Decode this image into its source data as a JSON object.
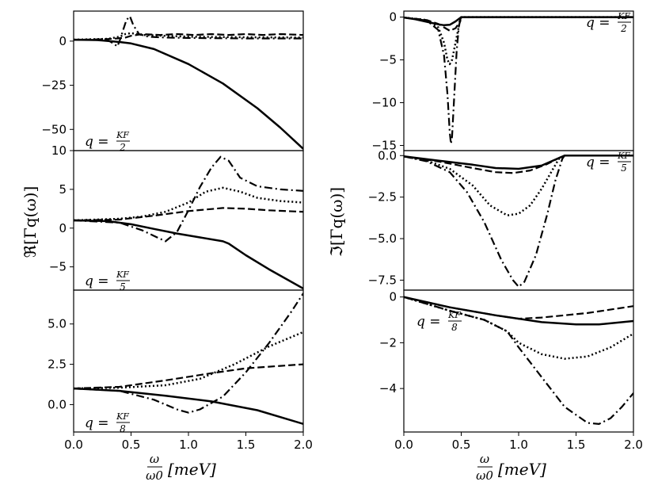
{
  "figure": {
    "x_axis_label": {
      "num": "ω",
      "den": "ω0",
      "unit": "[meV]"
    },
    "left_ylabel": "ℜ[Γq(ω)]",
    "right_ylabel": "ℑ[Γq(ω)]"
  },
  "chart_data": [
    {
      "id": "re_q2",
      "type": "line",
      "column": "left",
      "label": {
        "prefix": "q = ",
        "num": "KF",
        "den": "2"
      },
      "xlim": [
        0,
        2
      ],
      "ylim": [
        -62,
        17
      ],
      "xticks": [],
      "yticks": [
        0,
        -25,
        -50
      ],
      "ytick_labels": [
        "0",
        "−25",
        "−50"
      ],
      "series": [
        {
          "name": "solid",
          "x": [
            0,
            0.2,
            0.4,
            0.5,
            0.7,
            1.0,
            1.3,
            1.6,
            1.8,
            2.0
          ],
          "y": [
            0.8,
            0.6,
            -0.5,
            -1.3,
            -4.5,
            -13,
            -24,
            -38,
            -49,
            -61
          ]
        },
        {
          "name": "dashed",
          "x": [
            0,
            0.25,
            0.38,
            0.45,
            0.5,
            0.6,
            0.75,
            0.9,
            1.05,
            1.2,
            1.35,
            1.5,
            1.65,
            1.8,
            2.0
          ],
          "y": [
            0.8,
            1.0,
            1.5,
            2,
            3,
            4,
            3.5,
            4,
            3.5,
            4,
            3.5,
            4,
            3.5,
            4,
            3.5
          ]
        },
        {
          "name": "dotted",
          "x": [
            0,
            0.3,
            0.4,
            0.45,
            0.5,
            0.6,
            0.8,
            1.0,
            1.5,
            2.0
          ],
          "y": [
            0.8,
            1.3,
            2.5,
            4,
            4.5,
            3.5,
            3,
            2.5,
            2.2,
            2
          ]
        },
        {
          "name": "dashdot",
          "x": [
            0,
            0.3,
            0.35,
            0.38,
            0.4,
            0.43,
            0.46,
            0.49,
            0.52,
            0.57,
            0.65,
            0.8,
            1.0,
            1.5,
            2.0
          ],
          "y": [
            0.8,
            0.5,
            -1.5,
            -3,
            0,
            6,
            12,
            14,
            9,
            4,
            2.5,
            2,
            1.8,
            1.5,
            1.5
          ]
        }
      ]
    },
    {
      "id": "re_q5",
      "type": "line",
      "column": "left",
      "label": {
        "prefix": "q = ",
        "num": "KF",
        "den": "5"
      },
      "xlim": [
        0,
        2
      ],
      "ylim": [
        -8,
        10
      ],
      "xticks": [],
      "yticks": [
        10,
        5,
        0,
        -5
      ],
      "ytick_labels": [
        "10",
        "5",
        "0",
        "−5"
      ],
      "series": [
        {
          "name": "solid",
          "x": [
            0,
            0.3,
            0.5,
            0.7,
            0.9,
            1.1,
            1.3,
            1.35,
            1.5,
            1.7,
            2.0
          ],
          "y": [
            1,
            0.9,
            0.5,
            -0.1,
            -0.7,
            -1.2,
            -1.7,
            -2.0,
            -3.5,
            -5.3,
            -7.8
          ]
        },
        {
          "name": "dashed",
          "x": [
            0,
            0.4,
            0.7,
            1.0,
            1.3,
            1.5,
            1.7,
            2.0
          ],
          "y": [
            1,
            1.1,
            1.6,
            2.2,
            2.6,
            2.5,
            2.3,
            2.1
          ]
        },
        {
          "name": "dotted",
          "x": [
            0,
            0.4,
            0.6,
            0.8,
            1.0,
            1.15,
            1.3,
            1.45,
            1.6,
            1.8,
            2.0
          ],
          "y": [
            1,
            1.2,
            1.5,
            2.1,
            3.3,
            4.7,
            5.2,
            4.7,
            3.9,
            3.5,
            3.3
          ]
        },
        {
          "name": "dashdot",
          "x": [
            0,
            0.4,
            0.6,
            0.7,
            0.8,
            0.9,
            1.0,
            1.1,
            1.2,
            1.28,
            1.35,
            1.45,
            1.6,
            1.8,
            2.0
          ],
          "y": [
            1,
            0.7,
            -0.3,
            -1.0,
            -1.7,
            -0.5,
            2.3,
            5.3,
            7.8,
            9.2,
            8.7,
            6.5,
            5.4,
            5.0,
            4.8
          ]
        }
      ]
    },
    {
      "id": "re_q8",
      "type": "line",
      "column": "left",
      "label": {
        "prefix": "q = ",
        "num": "KF",
        "den": "8"
      },
      "xlim": [
        0,
        2
      ],
      "ylim": [
        -1.7,
        7.1
      ],
      "xticks": [
        0,
        0.5,
        1,
        1.5,
        2
      ],
      "xtick_labels": [
        "0.0",
        "0.5",
        "1.0",
        "1.5",
        "2.0"
      ],
      "yticks": [
        5,
        2.5,
        0
      ],
      "ytick_labels": [
        "5.0",
        "2.5",
        "0.0"
      ],
      "series": [
        {
          "name": "solid",
          "x": [
            0,
            0.4,
            0.8,
            1.2,
            1.6,
            2.0
          ],
          "y": [
            1,
            0.85,
            0.55,
            0.2,
            -0.35,
            -1.2
          ]
        },
        {
          "name": "dashed",
          "x": [
            0,
            0.4,
            0.8,
            1.2,
            1.5,
            1.8,
            2.0
          ],
          "y": [
            1,
            1.1,
            1.5,
            1.95,
            2.25,
            2.4,
            2.5
          ]
        },
        {
          "name": "dotted",
          "x": [
            0,
            0.4,
            0.8,
            1.1,
            1.4,
            1.7,
            2.0
          ],
          "y": [
            1,
            1.05,
            1.2,
            1.6,
            2.5,
            3.6,
            4.5
          ]
        },
        {
          "name": "dashdot",
          "x": [
            0,
            0.4,
            0.7,
            0.9,
            1.0,
            1.1,
            1.3,
            1.5,
            1.7,
            1.9,
            2.0
          ],
          "y": [
            1,
            0.85,
            0.3,
            -0.3,
            -0.5,
            -0.3,
            0.5,
            2.0,
            3.8,
            5.8,
            6.9
          ]
        }
      ]
    },
    {
      "id": "im_q2",
      "type": "line",
      "column": "right",
      "label": {
        "prefix": "q = ",
        "num": "KF",
        "den": "2"
      },
      "xlim": [
        0,
        2
      ],
      "ylim": [
        -15.6,
        0.7
      ],
      "xticks": [],
      "yticks": [
        0,
        -5,
        -10,
        -15
      ],
      "ytick_labels": [
        "0",
        "−5",
        "−10",
        "−15"
      ],
      "series": [
        {
          "name": "solid",
          "x": [
            0,
            0.1,
            0.2,
            0.3,
            0.35,
            0.4,
            0.45,
            0.5,
            1.0,
            2.0
          ],
          "y": [
            -0.05,
            -0.25,
            -0.55,
            -0.85,
            -0.95,
            -0.9,
            -0.5,
            0,
            0,
            0
          ]
        },
        {
          "name": "dashed",
          "x": [
            0,
            0.2,
            0.3,
            0.35,
            0.4,
            0.45,
            0.48,
            0.5,
            1.0,
            2.0
          ],
          "y": [
            -0.05,
            -0.35,
            -0.8,
            -1.2,
            -1.6,
            -1.3,
            -0.7,
            0,
            0,
            0
          ]
        },
        {
          "name": "dotted",
          "x": [
            0,
            0.2,
            0.3,
            0.35,
            0.38,
            0.4,
            0.42,
            0.45,
            0.48,
            0.5,
            1.0,
            2.0
          ],
          "y": [
            -0.05,
            -0.35,
            -1.2,
            -3.0,
            -5.0,
            -5.5,
            -5.0,
            -3.0,
            -1.0,
            0,
            0,
            0
          ]
        },
        {
          "name": "dashdot",
          "x": [
            0,
            0.2,
            0.3,
            0.35,
            0.38,
            0.4,
            0.41,
            0.42,
            0.44,
            0.46,
            0.48,
            0.5,
            1.0,
            2.0
          ],
          "y": [
            -0.05,
            -0.4,
            -1.5,
            -4.5,
            -9,
            -13.5,
            -14.8,
            -14.0,
            -9,
            -4,
            -1,
            0,
            0,
            0
          ]
        }
      ]
    },
    {
      "id": "im_q5",
      "type": "line",
      "column": "right",
      "label": {
        "prefix": "q = ",
        "num": "KF",
        "den": "5"
      },
      "xlim": [
        0,
        2
      ],
      "ylim": [
        -8.1,
        0.3
      ],
      "xticks": [],
      "yticks": [
        0,
        -2.5,
        -5,
        -7.5
      ],
      "ytick_labels": [
        "0.0",
        "−2.5",
        "−5.0",
        "−7.5"
      ],
      "series": [
        {
          "name": "solid",
          "x": [
            0,
            0.3,
            0.6,
            0.8,
            1.0,
            1.2,
            1.35,
            1.4,
            2.0
          ],
          "y": [
            -0.05,
            -0.3,
            -0.55,
            -0.75,
            -0.8,
            -0.6,
            -0.15,
            0,
            0
          ]
        },
        {
          "name": "dashed",
          "x": [
            0,
            0.3,
            0.6,
            0.8,
            0.95,
            1.1,
            1.25,
            1.38,
            1.4,
            2.0
          ],
          "y": [
            -0.05,
            -0.35,
            -0.75,
            -1.0,
            -1.05,
            -0.9,
            -0.5,
            -0.05,
            0,
            0
          ]
        },
        {
          "name": "dotted",
          "x": [
            0,
            0.2,
            0.4,
            0.6,
            0.75,
            0.9,
            1.0,
            1.1,
            1.2,
            1.3,
            1.35,
            1.4,
            2.0
          ],
          "y": [
            -0.05,
            -0.3,
            -0.8,
            -1.8,
            -3.0,
            -3.6,
            -3.5,
            -3.0,
            -2.0,
            -0.8,
            -0.2,
            0,
            0
          ]
        },
        {
          "name": "dashdot",
          "x": [
            0,
            0.2,
            0.4,
            0.55,
            0.7,
            0.85,
            0.95,
            1.0,
            1.05,
            1.15,
            1.25,
            1.32,
            1.38,
            1.4,
            2.0
          ],
          "y": [
            -0.05,
            -0.35,
            -1.0,
            -2.2,
            -4.0,
            -6.3,
            -7.5,
            -7.9,
            -7.6,
            -6.0,
            -3.5,
            -1.5,
            -0.2,
            0,
            0
          ]
        }
      ]
    },
    {
      "id": "im_q8",
      "type": "line",
      "column": "right",
      "label": {
        "prefix": "q = ",
        "num": "KF",
        "den": "8"
      },
      "xlim": [
        0,
        2
      ],
      "ylim": [
        -5.9,
        0.3
      ],
      "xticks": [
        0,
        0.5,
        1,
        1.5,
        2
      ],
      "xtick_labels": [
        "0.0",
        "0.5",
        "1.0",
        "1.5",
        "2.0"
      ],
      "yticks": [
        0,
        -2,
        -4
      ],
      "ytick_labels": [
        "0",
        "−2",
        "−4"
      ],
      "series": [
        {
          "name": "solid",
          "x": [
            0,
            0.4,
            0.8,
            1.2,
            1.5,
            1.7,
            2.0
          ],
          "y": [
            0,
            -0.45,
            -0.8,
            -1.1,
            -1.2,
            -1.2,
            -1.05
          ]
        },
        {
          "name": "dashed",
          "x": [
            0,
            0.4,
            0.8,
            1.0,
            1.2,
            1.6,
            2.0
          ],
          "y": [
            0,
            -0.45,
            -0.8,
            -0.95,
            -0.9,
            -0.7,
            -0.4
          ]
        },
        {
          "name": "dotted",
          "x": [
            0,
            0.4,
            0.7,
            0.9,
            1.0,
            1.2,
            1.4,
            1.6,
            1.8,
            2.0
          ],
          "y": [
            0,
            -0.6,
            -1.0,
            -1.5,
            -2.0,
            -2.5,
            -2.7,
            -2.6,
            -2.2,
            -1.6
          ]
        },
        {
          "name": "dashdot",
          "x": [
            0,
            0.4,
            0.7,
            0.9,
            1.0,
            1.2,
            1.4,
            1.6,
            1.7,
            1.8,
            1.9,
            2.0
          ],
          "y": [
            0,
            -0.6,
            -1.0,
            -1.5,
            -2.2,
            -3.5,
            -4.8,
            -5.5,
            -5.55,
            -5.3,
            -4.8,
            -4.2
          ]
        }
      ]
    }
  ]
}
